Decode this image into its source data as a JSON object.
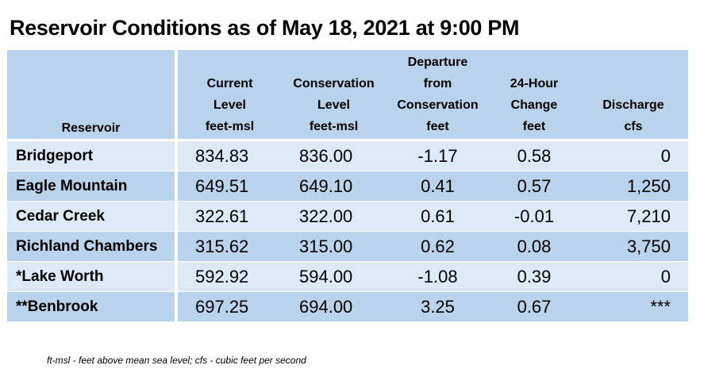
{
  "title": "Reservoir Conditions as of May 18, 2021 at 9:00 PM",
  "table": {
    "columns": [
      {
        "label_lines": [
          "Reservoir"
        ],
        "unit": ""
      },
      {
        "label_lines": [
          "Current",
          "Level"
        ],
        "unit": "feet-msl"
      },
      {
        "label_lines": [
          "Conservation",
          "Level"
        ],
        "unit": "feet-msl"
      },
      {
        "label_lines": [
          "Departure",
          "from",
          "Conservation"
        ],
        "unit": "feet"
      },
      {
        "label_lines": [
          "24-Hour",
          "Change"
        ],
        "unit": "feet"
      },
      {
        "label_lines": [
          "Discharge"
        ],
        "unit": "cfs"
      }
    ],
    "rows": [
      {
        "reservoir": "Bridgeport",
        "current_level": "834.83",
        "conservation_level": "836.00",
        "departure": "-1.17",
        "change_24h": "0.58",
        "discharge": "0"
      },
      {
        "reservoir": "Eagle Mountain",
        "current_level": "649.51",
        "conservation_level": "649.10",
        "departure": "0.41",
        "change_24h": "0.57",
        "discharge": "1,250"
      },
      {
        "reservoir": "Cedar Creek",
        "current_level": "322.61",
        "conservation_level": "322.00",
        "departure": "0.61",
        "change_24h": "-0.01",
        "discharge": "7,210"
      },
      {
        "reservoir": "Richland Chambers",
        "current_level": "315.62",
        "conservation_level": "315.00",
        "departure": "0.62",
        "change_24h": "0.08",
        "discharge": "3,750"
      },
      {
        "reservoir": "*Lake Worth",
        "current_level": "592.92",
        "conservation_level": "594.00",
        "departure": "-1.08",
        "change_24h": "0.39",
        "discharge": "0"
      },
      {
        "reservoir": "**Benbrook",
        "current_level": "697.25",
        "conservation_level": "694.00",
        "departure": "3.25",
        "change_24h": "0.67",
        "discharge": "***"
      }
    ]
  },
  "footnote": "ft-msl - feet above mean sea level; cfs - cubic feet per second",
  "colors": {
    "header_bg": "#b9d3ed",
    "row_light": "#dde9f5",
    "row_dark": "#b9d3ed"
  }
}
